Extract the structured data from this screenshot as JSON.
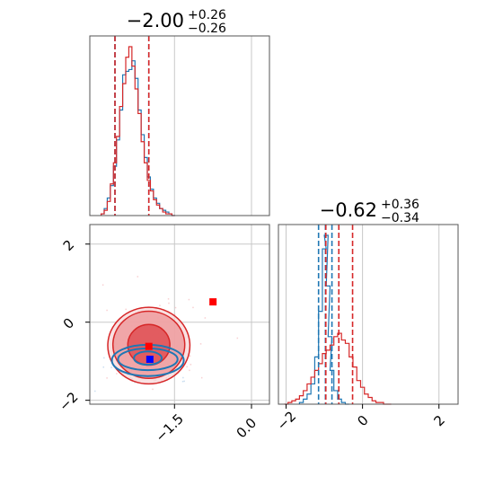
{
  "colors": {
    "red": "#d62728",
    "blue": "#1f77b4",
    "red_marker": "#ff0000",
    "blue_marker": "#0000ff",
    "grid": "#c8c8c8",
    "frame": "#555555"
  },
  "chart_data": [
    {
      "type": "histogram",
      "panel": "marginal-1",
      "title": {
        "value": "−2.00",
        "sup": "+0.26",
        "sub": "−0.26"
      },
      "xlim": [
        -3.15,
        0.35
      ],
      "x_ticks": [
        -1.5,
        0.0
      ],
      "grid": true,
      "quantile_lines": {
        "red": [
          -2.66,
          -2.0
        ],
        "blue": [
          -2.66,
          -2.0
        ]
      },
      "series": [
        {
          "color": "red",
          "x": [
            -2.9,
            -2.84,
            -2.78,
            -2.72,
            -2.66,
            -2.6,
            -2.54,
            -2.48,
            -2.42,
            -2.36,
            -2.3,
            -2.24,
            -2.18,
            -2.12,
            -2.06,
            -2.0,
            -1.94,
            -1.88,
            -1.82,
            -1.76,
            -1.7,
            -1.64,
            -1.58,
            -1.52
          ],
          "values": [
            0.01,
            0.03,
            0.08,
            0.18,
            0.3,
            0.45,
            0.62,
            0.75,
            0.9,
            0.96,
            0.85,
            0.72,
            0.58,
            0.42,
            0.3,
            0.2,
            0.14,
            0.09,
            0.06,
            0.04,
            0.02,
            0.01,
            0.01,
            0.0
          ]
        },
        {
          "color": "blue",
          "x": [
            -2.9,
            -2.84,
            -2.78,
            -2.72,
            -2.66,
            -2.6,
            -2.54,
            -2.48,
            -2.42,
            -2.36,
            -2.3,
            -2.24,
            -2.18,
            -2.12,
            -2.06,
            -2.0,
            -1.94,
            -1.88,
            -1.82,
            -1.76,
            -1.7,
            -1.64,
            -1.58,
            -1.52
          ],
          "values": [
            0.01,
            0.04,
            0.1,
            0.17,
            0.28,
            0.43,
            0.6,
            0.8,
            0.82,
            0.83,
            0.88,
            0.78,
            0.6,
            0.46,
            0.33,
            0.22,
            0.15,
            0.1,
            0.07,
            0.04,
            0.03,
            0.02,
            0.01,
            0.0
          ]
        }
      ]
    },
    {
      "type": "histogram",
      "panel": "marginal-2",
      "title": {
        "value": "−0.62",
        "sup": "+0.36",
        "sub": "−0.34"
      },
      "xlim": [
        -2.2,
        2.5
      ],
      "x_ticks": [
        -2,
        0,
        2
      ],
      "grid": true,
      "quantile_lines": {
        "red": [
          -0.96,
          -0.62,
          -0.26
        ],
        "blue": [
          -1.15,
          -0.97,
          -0.8
        ]
      },
      "series": [
        {
          "color": "red",
          "x": [
            -2.0,
            -1.9,
            -1.8,
            -1.7,
            -1.6,
            -1.5,
            -1.4,
            -1.3,
            -1.2,
            -1.1,
            -1.0,
            -0.9,
            -0.8,
            -0.7,
            -0.6,
            -0.5,
            -0.4,
            -0.3,
            -0.2,
            -0.1,
            0.0,
            0.1,
            0.2,
            0.3,
            0.4,
            0.5,
            0.6,
            0.7
          ],
          "values": [
            0.0,
            0.01,
            0.02,
            0.03,
            0.05,
            0.08,
            0.12,
            0.16,
            0.2,
            0.24,
            0.3,
            0.32,
            0.35,
            0.4,
            0.42,
            0.38,
            0.36,
            0.28,
            0.22,
            0.14,
            0.1,
            0.06,
            0.04,
            0.02,
            0.01,
            0.01,
            0.0,
            0.0
          ]
        },
        {
          "color": "blue",
          "x": [
            -1.6,
            -1.5,
            -1.4,
            -1.3,
            -1.2,
            -1.1,
            -1.0,
            -0.95,
            -0.9,
            -0.85,
            -0.8,
            -0.7,
            -0.6,
            -0.5,
            -0.4
          ],
          "values": [
            0.01,
            0.03,
            0.06,
            0.12,
            0.28,
            0.55,
            0.92,
            1.0,
            0.7,
            0.4,
            0.2,
            0.08,
            0.03,
            0.01,
            0.0
          ]
        }
      ]
    },
    {
      "type": "contour",
      "panel": "joint",
      "xlim": [
        -3.15,
        0.35
      ],
      "ylim": [
        -2.1,
        2.5
      ],
      "x_ticks": [
        -1.5,
        0.0
      ],
      "y_ticks": [
        -2,
        0,
        2
      ],
      "grid": true,
      "red_contours": [
        {
          "cx": -2.0,
          "cy": -0.58,
          "rx": 0.41,
          "ry": 0.52
        },
        {
          "cx": -2.0,
          "cy": -0.58,
          "rx": 0.7,
          "ry": 0.86
        },
        {
          "cx": -2.0,
          "cy": -0.6,
          "rx": 0.8,
          "ry": 0.98
        }
      ],
      "blue_contours": [
        {
          "cx": -2.02,
          "cy": -0.92,
          "rx": 0.27,
          "ry": 0.17
        },
        {
          "cx": -2.02,
          "cy": -0.95,
          "rx": 0.58,
          "ry": 0.28
        },
        {
          "cx": -2.02,
          "cy": -0.98,
          "rx": 0.7,
          "ry": 0.4
        }
      ],
      "markers": [
        {
          "color": "red",
          "x": -0.75,
          "y": 0.52
        },
        {
          "color": "blue",
          "x": -1.98,
          "y": -0.95
        },
        {
          "color": "red",
          "x": -2.0,
          "y": -0.62
        }
      ]
    }
  ]
}
